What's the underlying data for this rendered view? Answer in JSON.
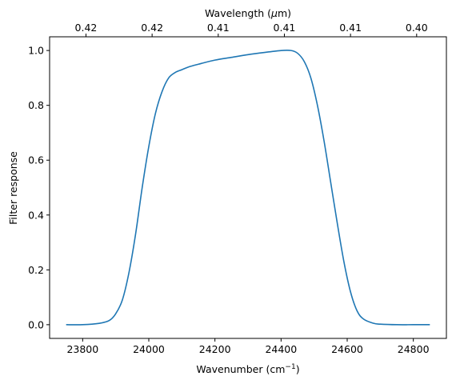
{
  "chart_data": {
    "type": "line",
    "xlabel": "Wavenumber (cm",
    "xlabel_sup": "−1",
    "xlabel_suffix": ")",
    "ylabel": "Filter response",
    "top_xlabel_prefix": "Wavelength (",
    "top_xlabel_mu": "μ",
    "top_xlabel_suffix": "m)",
    "xlim": [
      23700,
      24900
    ],
    "ylim": [
      -0.05,
      1.05
    ],
    "x_ticks": [
      23800,
      24000,
      24200,
      24400,
      24600,
      24800
    ],
    "x_tick_labels": [
      "23800",
      "24000",
      "24200",
      "24400",
      "24600",
      "24800"
    ],
    "y_ticks": [
      0.0,
      0.2,
      0.4,
      0.6,
      0.8,
      1.0
    ],
    "y_tick_labels": [
      "0.0",
      "0.2",
      "0.4",
      "0.6",
      "0.8",
      "1.0"
    ],
    "top_ticks_at_wavenumber": [
      23810,
      24010,
      24210,
      24410,
      24610,
      24810
    ],
    "top_tick_labels": [
      "0.42",
      "0.42",
      "0.41",
      "0.41",
      "0.41",
      "0.40"
    ],
    "line_color": "#1f77b4",
    "series": [
      {
        "x": [
          23750,
          23800,
          23850,
          23880,
          23900,
          23920,
          23940,
          23960,
          23980,
          24000,
          24020,
          24040,
          24060,
          24080,
          24100,
          24120,
          24150,
          24200,
          24250,
          24300,
          24350,
          24400,
          24430,
          24450,
          24470,
          24490,
          24510,
          24530,
          24550,
          24570,
          24590,
          24610,
          24630,
          24650,
          24680,
          24700,
          24750,
          24800,
          24850
        ],
        "y": [
          0.0,
          0.0,
          0.005,
          0.015,
          0.04,
          0.09,
          0.19,
          0.33,
          0.5,
          0.65,
          0.77,
          0.85,
          0.9,
          0.92,
          0.93,
          0.94,
          0.95,
          0.965,
          0.975,
          0.985,
          0.993,
          1.0,
          1.0,
          0.99,
          0.96,
          0.9,
          0.8,
          0.67,
          0.52,
          0.37,
          0.23,
          0.12,
          0.05,
          0.02,
          0.005,
          0.002,
          0.0,
          0.0,
          0.0
        ]
      }
    ]
  }
}
